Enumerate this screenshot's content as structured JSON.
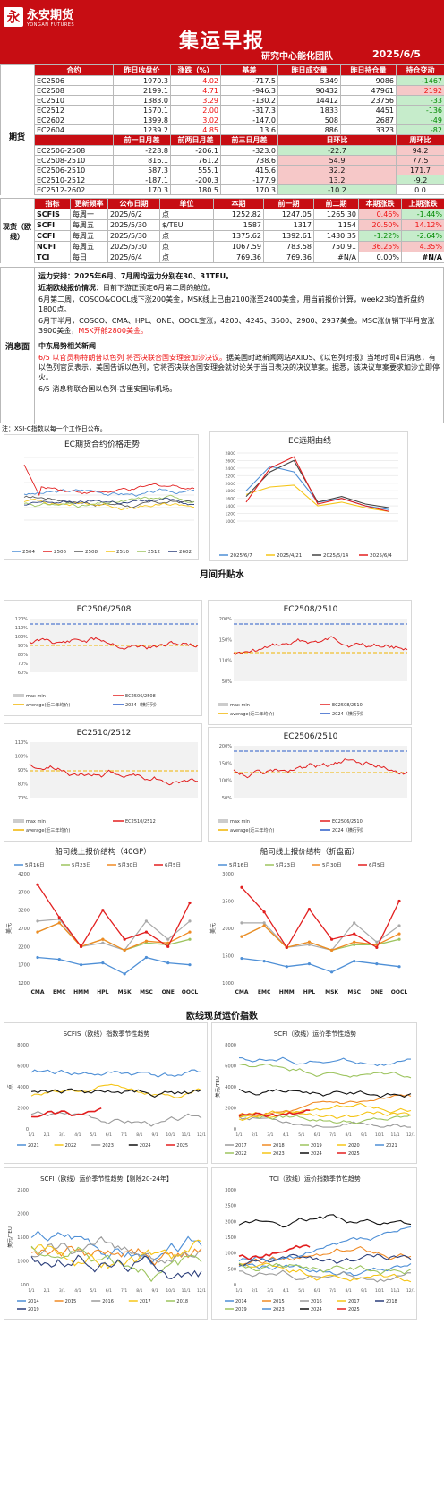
{
  "header": {
    "logo_mark": "永",
    "company_cn": "永安期货",
    "company_en": "YONGAN FUTURES",
    "title": "集运早报",
    "team": "研究中心能化团队",
    "date": "2025/6/5"
  },
  "futures": {
    "section_label": "期货",
    "head": [
      "合约",
      "昨日收盘价",
      "涨跌（%）",
      "基差",
      "昨日成交量",
      "昨日持仓量",
      "持仓变动"
    ],
    "rows": [
      [
        "EC2506",
        "1970.3",
        "4.02",
        "-717.5",
        "5349",
        "9086",
        "-1467"
      ],
      [
        "EC2508",
        "2199.1",
        "4.71",
        "-946.3",
        "90432",
        "47961",
        "2192"
      ],
      [
        "EC2510",
        "1383.0",
        "3.29",
        "-130.2",
        "14412",
        "23756",
        "-33"
      ],
      [
        "EC2512",
        "1570.1",
        "2.00",
        "-317.3",
        "1833",
        "4451",
        "-136"
      ],
      [
        "EC2602",
        "1399.8",
        "3.02",
        "-147.0",
        "508",
        "2687",
        "-49"
      ],
      [
        "EC2604",
        "1239.2",
        "4.85",
        "13.6",
        "886",
        "3323",
        "-82"
      ]
    ],
    "spread_head": [
      "",
      "前一日月差",
      "前两日月差",
      "前三日月差",
      "日环比",
      "",
      "周环比"
    ],
    "spread_rows": [
      [
        "EC2506-2508",
        "-228.8",
        "-206.1",
        "-323.0",
        "-22.7",
        "94.2"
      ],
      [
        "EC2508-2510",
        "816.1",
        "761.2",
        "738.6",
        "54.9",
        "77.5"
      ],
      [
        "EC2506-2510",
        "587.3",
        "555.1",
        "415.6",
        "32.2",
        "171.7"
      ],
      [
        "EC2510-2512",
        "-187.1",
        "-200.3",
        "-177.9",
        "13.2",
        "-9.2"
      ],
      [
        "EC2512-2602",
        "170.3",
        "180.5",
        "170.3",
        "-10.2",
        "0.0"
      ]
    ]
  },
  "spot": {
    "section_label": "现货（欧线）",
    "head": [
      "指标",
      "更新频率",
      "公布日期",
      "单位",
      "本期",
      "前一期",
      "前二期",
      "本期涨跌",
      "上期涨跌"
    ],
    "rows": [
      [
        "SCFIS",
        "每周一",
        "2025/6/2",
        "点",
        "1252.82",
        "1247.05",
        "1265.30",
        "0.46%",
        "-1.44%"
      ],
      [
        "SCFI",
        "每周五",
        "2025/5/30",
        "$/TEU",
        "1587",
        "1317",
        "1154",
        "20.50%",
        "14.12%"
      ],
      [
        "CCFI",
        "每周五",
        "2025/5/30",
        "点",
        "1375.62",
        "1392.61",
        "1430.35",
        "-1.22%",
        "-2.64%"
      ],
      [
        "NCFI",
        "每周五",
        "2025/5/30",
        "点",
        "1067.59",
        "783.58",
        "750.91",
        "36.25%",
        "4.35%"
      ],
      [
        "TCI",
        "每日",
        "2025/6/4",
        "点",
        "769.36",
        "769.36",
        "#N/A",
        "0.00%",
        "#N/A"
      ]
    ]
  },
  "news": {
    "label": "消息面",
    "p1": "运力安排：2025年6月、7月周均运力分别在30、31TEU。",
    "p2_title": "近期欧线报价情况：",
    "p2": "目前下游正预定6月第二周的舱位。",
    "p3": "6月第二周，COSCO&OOCL线下涨200美金，MSK线上已由2100涨至2400美金，用当前报价计算，week23均值折盘约1800点。",
    "p4": "6月下半月，COSCO、CMA、HPL、ONE、OOCL宣涨，4200、4245、3500、2900、2937美金。MSC涨价销下半月宣涨3900美金，",
    "p4_red": "MSK开舱2800美金。",
    "p5_title": "中东局势相关新闻",
    "p6_red": "6/5 以官员称特朗普以色列 将否决联合国安理会加沙决议。",
    "p6": "据美国时政新闻网站AXIOS、《以色列时报》当地时间4日消息，有以色列官员表示，美国告诉以色列，它将否决联合国安理会就讨论关于当日表决的决议草案。据悉，该决议草案要求加沙立即停火。",
    "p7": "6/5 消息称联合国以色列-古里安国际机场。",
    "note": "注：XSI-C指数以每一个工作日公布。"
  },
  "charts": {
    "c1": {
      "title": "EC期货合约价格走势",
      "series": [
        {
          "name": "2504",
          "color": "#4e8fd6"
        },
        {
          "name": "2506",
          "color": "#e21f1f"
        },
        {
          "name": "2508",
          "color": "#555555"
        },
        {
          "name": "2510",
          "color": "#f5c518"
        },
        {
          "name": "2512",
          "color": "#9dc45f"
        },
        {
          "name": "2602",
          "color": "#2b3e7a"
        }
      ]
    },
    "c2": {
      "title": "EC远期曲线",
      "xticks": [
        "2025/6/7",
        "2025/4/21",
        "2025/5/14",
        "2025/6/4"
      ],
      "series": [
        {
          "name": "2025/6/7",
          "color": "#4e8fd6"
        },
        {
          "name": "2025/4/21",
          "color": "#f5c518"
        },
        {
          "name": "2025/5/14",
          "color": "#444444"
        },
        {
          "name": "2025/6/4",
          "color": "#e21f1f"
        }
      ]
    },
    "sec1": "月间升贴水",
    "c3": {
      "title": "EC2506/2508",
      "yticks": [
        "120%",
        "110%",
        "100%",
        "90%",
        "80%",
        "70%",
        "60%"
      ],
      "legend": [
        "max min",
        "EC2506/2508",
        "average(近三年均价)",
        "2024（横行列）"
      ]
    },
    "c4": {
      "title": "EC2508/2510",
      "yticks": [
        "200%",
        "150%",
        "110%",
        "50%"
      ],
      "legend": [
        "max min",
        "EC2508/2510",
        "average(近三年均价)",
        "2024（横行列）"
      ]
    },
    "c5": {
      "title": "EC2510/2512",
      "yticks": [
        "110%",
        "100%",
        "90%",
        "80%",
        "70%"
      ],
      "legend": [
        "max min",
        "EC2510/2512",
        "average(近三年均价)"
      ]
    },
    "c6": {
      "title": "EC2506/2510",
      "yticks": [
        "200%",
        "150%",
        "100%",
        "50%"
      ],
      "legend": [
        "max min",
        "EC2506/2510",
        "average(近三年均价)",
        "2024（横行列）"
      ]
    },
    "c7": {
      "title": "船司线上报价结构（40GP）",
      "ylabel": "美元",
      "carriers": [
        "CMA",
        "EMC",
        "HMM",
        "HPL",
        "MSK",
        "MSC",
        "ONE",
        "OOCL"
      ],
      "yticks": [
        "4200",
        "3700",
        "3200",
        "2700",
        "2200",
        "1700",
        "1200"
      ],
      "series": [
        {
          "name": "5月16日",
          "color": "#4e8fd6",
          "values": [
            1900,
            1850,
            1700,
            1750,
            1450,
            1900,
            1750,
            1700
          ]
        },
        {
          "name": "5月23日",
          "color": "#9dc45f",
          "values": [
            2600,
            2850,
            2200,
            2400,
            2100,
            2300,
            2250,
            2400
          ]
        },
        {
          "name": "5月30日",
          "color": "#f08a24",
          "values": [
            2600,
            2850,
            2200,
            2400,
            2100,
            2350,
            2300,
            2600
          ]
        },
        {
          "name": "6月5日",
          "color": "#e21f1f",
          "values": [
            3900,
            3000,
            2200,
            3200,
            2400,
            2600,
            2200,
            3400
          ]
        }
      ],
      "gray": [
        2900,
        2950,
        2200,
        2300,
        2100,
        2900,
        2400,
        2900
      ]
    },
    "c8": {
      "title": "船司线上报价结构（折盘面）",
      "ylabel": "美元",
      "carriers": [
        "CMA",
        "EMC",
        "HMM",
        "HPL",
        "MSK",
        "MSC",
        "ONE",
        "OOCL"
      ],
      "yticks": [
        "3000",
        "2500",
        "2000",
        "1500",
        "1000"
      ],
      "series": [
        {
          "name": "5月16日",
          "color": "#4e8fd6",
          "values": [
            1450,
            1400,
            1300,
            1350,
            1200,
            1400,
            1350,
            1300
          ]
        },
        {
          "name": "5月23日",
          "color": "#9dc45f",
          "values": [
            1850,
            2050,
            1650,
            1750,
            1600,
            1700,
            1700,
            1800
          ]
        },
        {
          "name": "5月30日",
          "color": "#f08a24",
          "values": [
            1850,
            2050,
            1650,
            1750,
            1600,
            1750,
            1700,
            1900
          ]
        },
        {
          "name": "6月5日",
          "color": "#e21f1f",
          "values": [
            2750,
            2300,
            1650,
            2350,
            1800,
            1900,
            1650,
            2500
          ]
        }
      ],
      "gray": [
        2100,
        2100,
        1650,
        1700,
        1600,
        2100,
        1750,
        2050
      ]
    },
    "sec2": "欧线现货运价指数",
    "c9": {
      "title": "SCFIS（欧线）指数季节性趋势",
      "ylabel": "点",
      "yticks": [
        "8000",
        "6000",
        "4000",
        "2000",
        "0"
      ],
      "legend": [
        {
          "name": "2021",
          "color": "#4e8fd6"
        },
        {
          "name": "2022",
          "color": "#f5c518"
        },
        {
          "name": "2023",
          "color": "#9a9a9a"
        },
        {
          "name": "2024",
          "color": "#111111"
        },
        {
          "name": "2025",
          "color": "#e21f1f"
        }
      ]
    },
    "c10": {
      "title": "SCFI（欧线）运价季节性趋势",
      "ylabel": "美元/TEU",
      "yticks": [
        "8000",
        "6000",
        "4000",
        "2000",
        "0"
      ],
      "legend": [
        {
          "name": "2017",
          "color": "#9a9a9a"
        },
        {
          "name": "2018",
          "color": "#f08a24"
        },
        {
          "name": "2019",
          "color": "#9dc45f"
        },
        {
          "name": "2020",
          "color": "#f5c518"
        },
        {
          "name": "2021",
          "color": "#4e8fd6"
        },
        {
          "name": "2022",
          "color": "#9dc45f"
        },
        {
          "name": "2023",
          "color": "#f5c518"
        },
        {
          "name": "2024",
          "color": "#111111"
        },
        {
          "name": "2025",
          "color": "#e21f1f"
        }
      ]
    },
    "c11": {
      "title": "SCFI（欧线）运价季节性趋势【剔除20-24年】",
      "ylabel": "美元/TEU",
      "yticks": [
        "2500",
        "2000",
        "1500",
        "1000",
        "500"
      ],
      "legend": [
        {
          "name": "2014",
          "color": "#4e8fd6"
        },
        {
          "name": "2015",
          "color": "#f08a24"
        },
        {
          "name": "2016",
          "color": "#9a9a9a"
        },
        {
          "name": "2017",
          "color": "#f5c518"
        },
        {
          "name": "2018",
          "color": "#9dc45f"
        },
        {
          "name": "2019",
          "color": "#2b3e7a"
        }
      ]
    },
    "c12": {
      "title": "TCI（欧线）运价指数季节性趋势",
      "yticks": [
        "3000",
        "2500",
        "2000",
        "1500",
        "1000",
        "500",
        "0"
      ],
      "legend": [
        {
          "name": "2014",
          "color": "#4e8fd6"
        },
        {
          "name": "2015",
          "color": "#f08a24"
        },
        {
          "name": "2016",
          "color": "#9a9a9a"
        },
        {
          "name": "2017",
          "color": "#f5c518"
        },
        {
          "name": "2018",
          "color": "#2b3e7a"
        },
        {
          "name": "2019",
          "color": "#9dc45f"
        },
        {
          "name": "2023",
          "color": "#4e8fd6"
        },
        {
          "name": "2024",
          "color": "#111111"
        },
        {
          "name": "2025",
          "color": "#e21f1f"
        }
      ]
    },
    "months": [
      "1/1",
      "2/1",
      "3/1",
      "4/1",
      "5/1",
      "6/1",
      "7/1",
      "8/1",
      "9/1",
      "10/1",
      "11/1",
      "12/1"
    ]
  }
}
